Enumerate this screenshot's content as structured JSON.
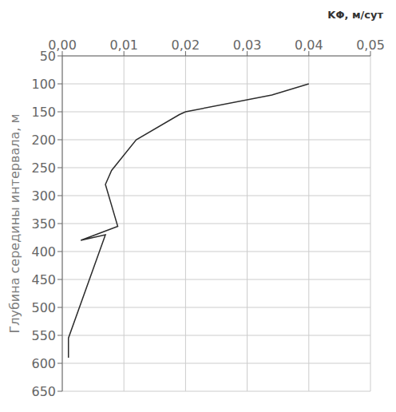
{
  "chart_data": {
    "type": "line",
    "x_label": "KΦ, м/сут",
    "y_label": "Глубина середины интервала, м",
    "x": [
      0.001,
      0.001,
      0.007,
      0.003,
      0.009,
      0.007,
      0.008,
      0.012,
      0.019,
      0.02,
      0.034,
      0.04
    ],
    "values": [
      590,
      555,
      370,
      380,
      355,
      280,
      255,
      200,
      155,
      150,
      120,
      100
    ],
    "color": "#2c2c2c",
    "xlim": [
      0,
      0.05
    ],
    "ylim": [
      650,
      50
    ],
    "xticks": [
      {
        "value": 0,
        "label": "0,00"
      },
      {
        "value": 0.01,
        "label": "0,01"
      },
      {
        "value": 0.02,
        "label": "0,02"
      },
      {
        "value": 0.03,
        "label": "0,03"
      },
      {
        "value": 0.04,
        "label": "0,04"
      },
      {
        "value": 0.05,
        "label": "0,05"
      }
    ],
    "yticks": [
      50,
      100,
      150,
      200,
      250,
      300,
      350,
      400,
      450,
      500,
      550,
      600,
      650
    ],
    "grid": true
  }
}
